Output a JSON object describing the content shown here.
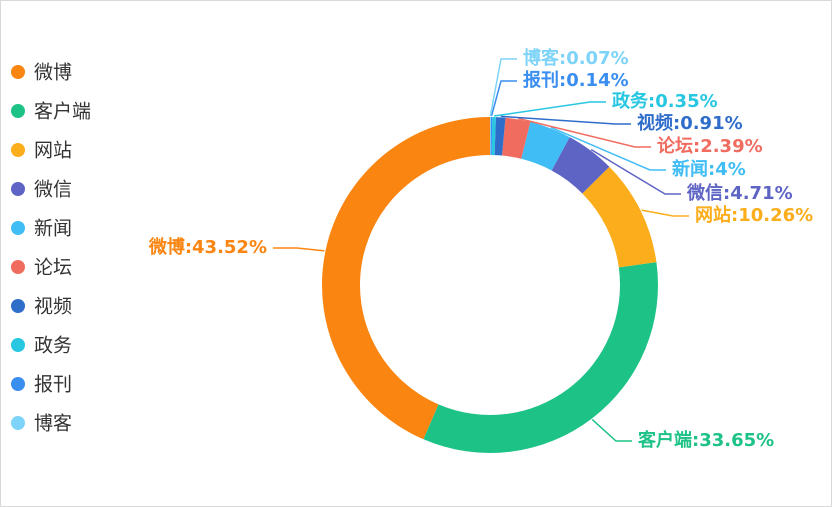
{
  "chart_data": {
    "type": "donut",
    "categories": [
      "微博",
      "客户端",
      "网站",
      "微信",
      "新闻",
      "论坛",
      "视频",
      "政务",
      "报刊",
      "博客"
    ],
    "values": [
      43.52,
      33.65,
      10.26,
      4.71,
      4,
      2.39,
      0.91,
      0.35,
      0.14,
      0.07
    ],
    "value_labels": [
      "微博:43.52%",
      "客户端:33.65%",
      "网站:10.26%",
      "微信:4.71%",
      "新闻:4%",
      "论坛:2.39%",
      "视频:0.91%",
      "政务:0.35%",
      "报刊:0.14%",
      "博客:0.07%"
    ],
    "colors": [
      "#fa8511",
      "#1dc286",
      "#fbad1c",
      "#5e64c4",
      "#41bdf5",
      "#f06c5f",
      "#2f6dcb",
      "#27c6e1",
      "#3a8ef0",
      "#7ed3f8"
    ],
    "legend": "left"
  }
}
